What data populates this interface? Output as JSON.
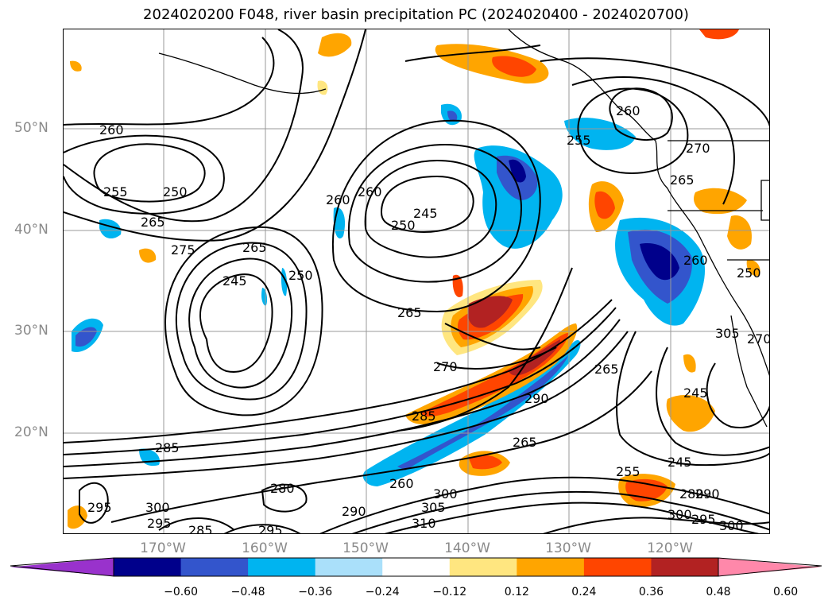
{
  "title": "2024020200 F048, river basin precipitation PC (2024020400 - 2024020700)",
  "lat_labels": [
    "50°N",
    "40°N",
    "30°N",
    "20°N"
  ],
  "lon_labels": [
    "170°W",
    "160°W",
    "150°W",
    "140°W",
    "130°W",
    "120°W"
  ],
  "contour_labels": [
    "260",
    "255",
    "250",
    "265",
    "275",
    "265",
    "245",
    "250",
    "260",
    "245",
    "250",
    "260",
    "270",
    "285",
    "285",
    "265",
    "280",
    "290",
    "300",
    "305",
    "310",
    "295",
    "300",
    "295",
    "285",
    "295",
    "300",
    "260",
    "255",
    "270",
    "265",
    "250",
    "260",
    "245",
    "255",
    "265",
    "245",
    "280",
    "290",
    "295",
    "300",
    "305",
    "270",
    "265",
    "290",
    "260"
  ],
  "colorbar": {
    "ticks": [
      "−0.60",
      "−0.48",
      "−0.36",
      "−0.24",
      "−0.12",
      "0.12",
      "0.24",
      "0.36",
      "0.48",
      "0.60"
    ],
    "colors": [
      "#9932cc",
      "#00008b",
      "#3355cc",
      "#00b4f0",
      "#aae0fa",
      "#ffffff",
      "#ffe680",
      "#ffa500",
      "#ff4500",
      "#b22222",
      "#ff88aa"
    ]
  },
  "colors": {
    "grid": "#999999",
    "contour": "#000000",
    "coast": "#000000"
  }
}
